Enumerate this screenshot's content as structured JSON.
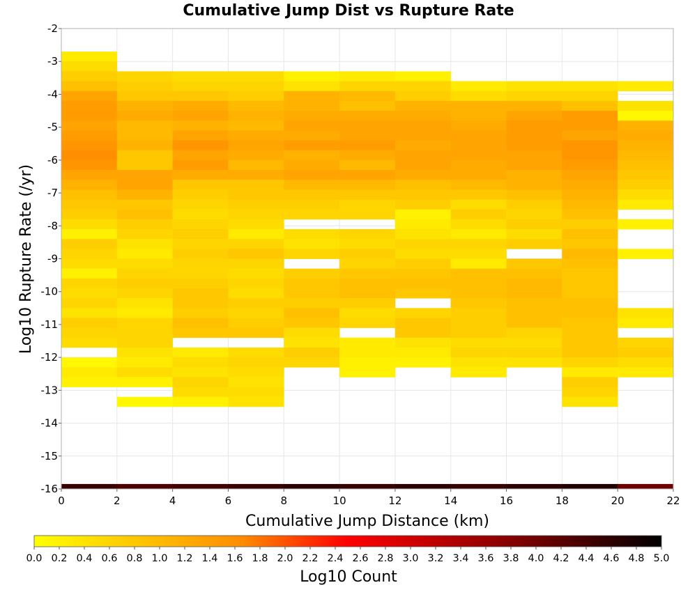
{
  "chart_data": {
    "type": "heatmap",
    "title": "Cumulative Jump Dist vs Rupture Rate",
    "xlabel": "Cumulative Jump Distance (km)",
    "ylabel": "Log10 Rupture Rate (/yr)",
    "xlim": [
      0,
      22
    ],
    "ylim": [
      -16,
      -2
    ],
    "x_ticks": [
      "0",
      "2",
      "4",
      "6",
      "8",
      "10",
      "12",
      "14",
      "16",
      "18",
      "20",
      "22"
    ],
    "y_ticks": [
      "-2",
      "-3",
      "-4",
      "-5",
      "-6",
      "-7",
      "-8",
      "-9",
      "-10",
      "-11",
      "-12",
      "-13",
      "-14",
      "-15",
      "-16"
    ],
    "grid": true,
    "x_bin_width": 2,
    "y_bin_height": 0.3,
    "colorbar": {
      "label": "Log10 Count",
      "range": [
        0,
        5
      ],
      "ticks": [
        "0.0",
        "0.2",
        "0.4",
        "0.6",
        "0.8",
        "1.0",
        "1.2",
        "1.4",
        "1.6",
        "1.8",
        "2.0",
        "2.2",
        "2.4",
        "2.6",
        "2.8",
        "3.0",
        "3.2",
        "3.4",
        "3.6",
        "3.8",
        "4.0",
        "4.2",
        "4.4",
        "4.6",
        "4.8",
        "5.0"
      ],
      "colors": [
        "#ffff00",
        "#ff8c00",
        "#ff0000",
        "#8b0000",
        "#000000"
      ]
    },
    "columns": [
      {
        "x0": 0,
        "top": -2.7,
        "values": [
          0.3,
          0.5,
          0.7,
          0.9,
          1.3,
          1.4,
          1.4,
          1.3,
          1.4,
          1.5,
          1.6,
          1.5,
          1.3,
          1.1,
          0.9,
          0.8,
          0.7,
          0.5,
          0.2,
          0.7,
          0.6,
          0.5,
          0.2,
          0.6,
          0.5,
          0.6,
          0.4,
          0.7,
          0.6,
          0.5,
          null,
          0.1,
          0.3,
          0.2
        ]
      },
      {
        "x0": 2,
        "top": -3.3,
        "values": [
          0.6,
          0.7,
          0.8,
          1.1,
          1.2,
          1.0,
          1.0,
          1.1,
          0.8,
          0.8,
          1.3,
          1.3,
          1.1,
          0.8,
          0.9,
          0.7,
          0.6,
          0.4,
          0.3,
          0.5,
          0.6,
          0.7,
          0.6,
          0.4,
          0.3,
          0.6,
          0.6,
          0.6,
          0.4,
          0.3,
          0.5,
          0.2,
          null,
          0.1
        ]
      },
      {
        "x0": 4,
        "top": -3.3,
        "values": [
          0.5,
          0.6,
          0.8,
          1.2,
          1.3,
          1.1,
          1.3,
          1.5,
          1.3,
          1.4,
          1.2,
          0.8,
          0.7,
          0.6,
          0.5,
          0.6,
          0.7,
          0.6,
          0.7,
          0.6,
          0.6,
          0.7,
          0.8,
          0.8,
          0.7,
          0.9,
          0.8,
          null,
          0.3,
          0.5,
          0.4,
          0.6,
          0.5,
          0.2
        ]
      },
      {
        "x0": 6,
        "top": -3.3,
        "values": [
          0.5,
          0.6,
          0.7,
          1.0,
          1.1,
          1.0,
          1.2,
          1.3,
          1.2,
          1.0,
          1.2,
          0.8,
          0.8,
          0.7,
          0.6,
          0.5,
          0.3,
          0.6,
          0.8,
          0.6,
          0.5,
          0.6,
          0.5,
          0.7,
          0.6,
          0.7,
          0.8,
          null,
          0.5,
          0.6,
          0.5,
          0.4,
          0.5,
          0.4
        ]
      },
      {
        "x0": 8,
        "top": -3.3,
        "values": [
          0.2,
          0.4,
          1.1,
          1.1,
          1.2,
          1.3,
          1.2,
          1.4,
          1.1,
          1.2,
          1.3,
          1.0,
          0.8,
          0.7,
          0.6,
          null,
          0.5,
          0.4,
          0.6,
          null,
          0.7,
          0.8,
          0.8,
          0.7,
          0.9,
          0.8,
          0.5,
          0.4,
          0.7,
          0.6
        ]
      },
      {
        "x0": 10,
        "top": -3.3,
        "values": [
          0.3,
          0.6,
          1.0,
          0.9,
          1.2,
          1.3,
          1.3,
          1.4,
          1.2,
          1.0,
          1.3,
          1.0,
          0.8,
          0.6,
          0.6,
          null,
          0.6,
          0.5,
          0.7,
          0.6,
          0.8,
          0.9,
          0.9,
          0.7,
          0.5,
          0.6,
          null,
          0.3,
          0.3,
          0.2,
          0.2
        ]
      },
      {
        "x0": 12,
        "top": -3.3,
        "values": [
          0.2,
          0.6,
          0.7,
          1.1,
          1.2,
          1.3,
          1.3,
          1.2,
          1.3,
          1.3,
          1.2,
          0.9,
          0.8,
          0.7,
          0.2,
          0.3,
          0.4,
          0.6,
          0.5,
          0.7,
          0.8,
          0.9,
          0.8,
          null,
          0.6,
          0.8,
          0.8,
          0.4,
          0.3,
          0.2
        ]
      },
      {
        "x0": 14,
        "top": -3.6,
        "values": [
          0.3,
          0.5,
          1.1,
          1.1,
          1.2,
          1.3,
          1.3,
          1.3,
          1.2,
          1.2,
          1.0,
          0.8,
          0.5,
          0.7,
          0.5,
          0.3,
          0.6,
          0.5,
          0.3,
          0.9,
          0.9,
          0.9,
          0.8,
          0.7,
          0.7,
          0.7,
          0.5,
          0.6,
          0.4,
          0.3
        ]
      },
      {
        "x0": 16,
        "top": -3.6,
        "values": [
          0.4,
          0.6,
          1.1,
          1.3,
          1.4,
          1.4,
          1.4,
          1.3,
          1.3,
          1.1,
          1.1,
          0.9,
          0.7,
          0.6,
          0.7,
          0.5,
          0.7,
          null,
          0.8,
          0.9,
          1.0,
          1.0,
          0.9,
          0.9,
          0.9,
          0.6,
          0.5,
          0.6,
          0.4
        ]
      },
      {
        "x0": 18,
        "top": -3.6,
        "values": [
          0.4,
          0.6,
          0.9,
          1.4,
          1.4,
          1.3,
          1.5,
          1.5,
          1.4,
          1.3,
          1.2,
          1.1,
          1.0,
          0.9,
          0.7,
          0.9,
          0.8,
          1.0,
          0.9,
          0.8,
          0.8,
          0.8,
          0.9,
          0.9,
          0.8,
          0.8,
          0.8,
          0.8,
          0.6,
          0.3,
          0.7,
          0.6,
          0.4
        ]
      },
      {
        "x0": 20,
        "top": -3.6,
        "values": [
          0.3,
          null,
          0.4,
          0.1,
          1.1,
          1.2,
          1.1,
          1.0,
          0.9,
          0.8,
          0.7,
          0.5,
          0.3,
          null,
          0.2,
          null,
          null,
          0.2,
          null,
          null,
          null,
          null,
          null,
          0.4,
          0.3,
          null,
          0.6,
          0.7,
          0.5,
          0.3
        ]
      }
    ],
    "bottom_row": {
      "y0": -16.0,
      "y1": -15.85,
      "values": [
        4.5,
        4.3,
        4.4,
        4.5,
        4.6,
        4.5,
        4.6,
        4.5,
        4.6,
        4.7,
        4.0
      ]
    }
  }
}
